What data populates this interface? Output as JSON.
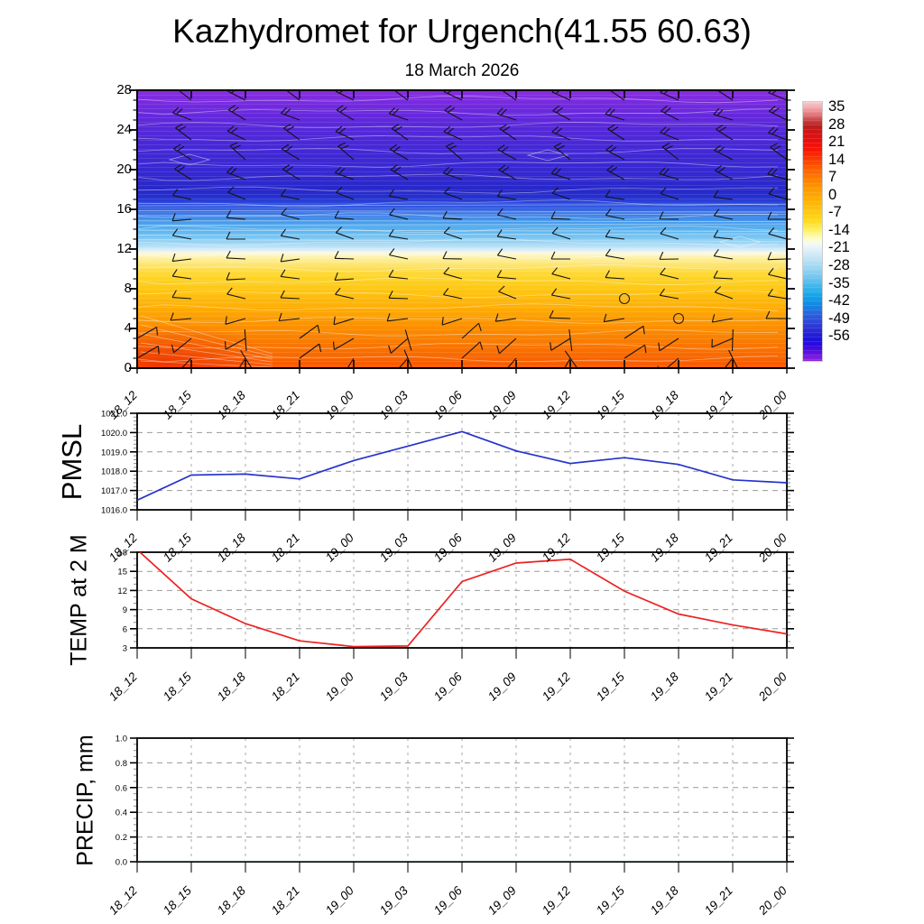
{
  "title": "Kazhydromet for Urgench(41.55 60.63)",
  "subtitle": "18 March 2026",
  "time_labels": [
    "18_12",
    "18_15",
    "18_18",
    "18_21",
    "19_00",
    "19_03",
    "19_06",
    "19_09",
    "19_12",
    "19_15",
    "19_18",
    "19_21",
    "20_00"
  ],
  "colors": {
    "pmsl_line": "#2633cc",
    "temp_line": "#ee2020",
    "precip_line": "#0a6b1e",
    "grid_dash": "#999999",
    "tick_minor": "#8a8a8a",
    "frame": "#000000",
    "barb": "#131313",
    "contour_line": "#ffffff"
  },
  "chart_data": [
    {
      "type": "heatmap",
      "name": "temperature-height-cross-section",
      "x": [
        "18_12",
        "18_15",
        "18_18",
        "18_21",
        "19_00",
        "19_03",
        "19_06",
        "19_09",
        "19_12",
        "19_15",
        "19_18",
        "19_21",
        "20_00"
      ],
      "ylim": [
        0,
        28
      ],
      "yticks": [
        28,
        24,
        20,
        16,
        12,
        8,
        4,
        0
      ],
      "colorbar_labels": [
        "35",
        "28",
        "21",
        "14",
        "7",
        "0",
        "-7",
        "-14",
        "-21",
        "-28",
        "-35",
        "-42",
        "-49",
        "-56"
      ],
      "field_gradient_top_to_bottom": [
        [
          0.0,
          "#8b2ce2"
        ],
        [
          0.06,
          "#7029de"
        ],
        [
          0.12,
          "#5b28da"
        ],
        [
          0.18,
          "#4b28d7"
        ],
        [
          0.24,
          "#3f28d4"
        ],
        [
          0.3,
          "#3528d0"
        ],
        [
          0.34,
          "#2b28cb"
        ],
        [
          0.36,
          "#2627c8"
        ],
        [
          0.385,
          "#2531cf"
        ],
        [
          0.405,
          "#2a46da"
        ],
        [
          0.43,
          "#3766e3"
        ],
        [
          0.46,
          "#3f8ce8"
        ],
        [
          0.49,
          "#51abed"
        ],
        [
          0.515,
          "#66bbf0"
        ],
        [
          0.54,
          "#8ccef3"
        ],
        [
          0.56,
          "#b4dff6"
        ],
        [
          0.575,
          "#dceef7"
        ],
        [
          0.583,
          "#f6f7ea"
        ],
        [
          0.59,
          "#fdf8cd"
        ],
        [
          0.605,
          "#fdf0a2"
        ],
        [
          0.625,
          "#fde674"
        ],
        [
          0.65,
          "#fedb44"
        ],
        [
          0.68,
          "#fed222"
        ],
        [
          0.71,
          "#fec917"
        ],
        [
          0.745,
          "#febc0d"
        ],
        [
          0.78,
          "#feae06"
        ],
        [
          0.81,
          "#fda103"
        ],
        [
          0.84,
          "#fc9401"
        ],
        [
          0.875,
          "#fb8600"
        ],
        [
          0.91,
          "#fa7900"
        ],
        [
          0.945,
          "#f96c00"
        ],
        [
          0.975,
          "#f86000"
        ],
        [
          1.0,
          "#f75800"
        ]
      ],
      "colorbar_gradient_top_to_bottom": [
        [
          0.0,
          "#f9cdd0"
        ],
        [
          0.025,
          "#f0a3a8"
        ],
        [
          0.05,
          "#e07578"
        ],
        [
          0.075,
          "#c43b3c"
        ],
        [
          0.095,
          "#b91f1f"
        ],
        [
          0.12,
          "#d41313"
        ],
        [
          0.15,
          "#ea0e0e"
        ],
        [
          0.185,
          "#fa1505"
        ],
        [
          0.22,
          "#fc3902"
        ],
        [
          0.255,
          "#fd5c01"
        ],
        [
          0.295,
          "#fd7c00"
        ],
        [
          0.335,
          "#fe9a00"
        ],
        [
          0.375,
          "#feae05"
        ],
        [
          0.415,
          "#fec30c"
        ],
        [
          0.455,
          "#fed81c"
        ],
        [
          0.49,
          "#feee52"
        ],
        [
          0.515,
          "#fdf9a6"
        ],
        [
          0.535,
          "#fcfdd9"
        ],
        [
          0.555,
          "#eef7fa"
        ],
        [
          0.58,
          "#d8ecf8"
        ],
        [
          0.61,
          "#bce2f5"
        ],
        [
          0.645,
          "#99d4f1"
        ],
        [
          0.68,
          "#6ec5ee"
        ],
        [
          0.715,
          "#3cb4eb"
        ],
        [
          0.75,
          "#12a4e8"
        ],
        [
          0.78,
          "#0f8ce4"
        ],
        [
          0.815,
          "#2767de"
        ],
        [
          0.85,
          "#2f46d8"
        ],
        [
          0.88,
          "#2c2cd2"
        ],
        [
          0.915,
          "#1d14dc"
        ],
        [
          0.94,
          "#2d08e0"
        ],
        [
          0.965,
          "#5a0fdf"
        ],
        [
          0.985,
          "#7b1cdd"
        ],
        [
          1.0,
          "#8d28dc"
        ]
      ],
      "calm_circles": [
        {
          "time": "19_15",
          "height": 7
        },
        {
          "time": "19_18",
          "height": 5
        }
      ],
      "wind_rows": [
        {
          "h": 27,
          "a": 150,
          "f": 2,
          "len": 22
        },
        {
          "h": 25,
          "a": 157,
          "f": 2,
          "len": 22
        },
        {
          "h": 23,
          "a": 152,
          "f": 2,
          "len": 22
        },
        {
          "h": 21,
          "a": 147,
          "f": 2,
          "len": 23
        },
        {
          "h": 19,
          "a": 158,
          "f": 2,
          "len": 22
        },
        {
          "h": 17,
          "a": 168,
          "f": 1,
          "len": 21
        },
        {
          "h": 15,
          "a": 175,
          "f": 1,
          "len": 21
        },
        {
          "h": 13,
          "a": 170,
          "f": 1,
          "len": 21
        },
        {
          "h": 11,
          "a": 178,
          "f": 1,
          "len": 21
        },
        {
          "h": 9,
          "a": 174,
          "f": 1,
          "len": 21
        },
        {
          "h": 7,
          "a": 168,
          "f": 1,
          "len": 21
        },
        {
          "h": 5,
          "a": 188,
          "f": 1,
          "len": 23
        },
        {
          "h": 3,
          "a": 212,
          "f": 1,
          "len": 25
        },
        {
          "h": 1,
          "a": 230,
          "f": 1,
          "len": 27
        }
      ]
    },
    {
      "type": "line",
      "ylabel": "PMSL",
      "x": [
        "18_12",
        "18_15",
        "18_18",
        "18_21",
        "19_00",
        "19_03",
        "19_06",
        "19_09",
        "19_12",
        "19_15",
        "19_18",
        "19_21",
        "20_00"
      ],
      "values": [
        1016.5,
        1017.8,
        1017.85,
        1017.6,
        1018.55,
        1019.3,
        1020.05,
        1019.05,
        1018.4,
        1018.7,
        1018.35,
        1017.55,
        1017.4
      ],
      "ylim": [
        1016.0,
        1021.0
      ],
      "ytick_labels": [
        "1021.0",
        "1020.0",
        "1019.0",
        "1018.0",
        "1017.0",
        "1016.0"
      ],
      "ytick_values": [
        1021,
        1020,
        1019,
        1018,
        1017,
        1016
      ],
      "minor_step": 0.2
    },
    {
      "type": "line",
      "ylabel": "TEMP at 2 M",
      "x": [
        "18_12",
        "18_15",
        "18_18",
        "18_21",
        "19_00",
        "19_03",
        "19_06",
        "19_09",
        "19_12",
        "19_15",
        "19_18",
        "19_21",
        "20_00"
      ],
      "values": [
        18.4,
        10.7,
        6.8,
        4.1,
        3.2,
        3.3,
        13.4,
        16.3,
        16.9,
        11.9,
        8.3,
        6.6,
        5.2
      ],
      "ylim": [
        3,
        18
      ],
      "ytick_labels": [
        "18",
        "15",
        "12",
        "9",
        "6",
        "3"
      ],
      "ytick_values": [
        18,
        15,
        12,
        9,
        6,
        3
      ],
      "minor_step": 1
    },
    {
      "type": "line",
      "ylabel": "PRECIP, mm",
      "x": [
        "18_12",
        "18_15",
        "18_18",
        "18_21",
        "19_00",
        "19_03",
        "19_06",
        "19_09",
        "19_12",
        "19_15",
        "19_18",
        "19_21",
        "20_00"
      ],
      "values": [
        0.0,
        0.0,
        0.0,
        0.0,
        0.0,
        0.0,
        0.0,
        0.0,
        0.0,
        0.0,
        0.0,
        0.0,
        0.0
      ],
      "ylim": [
        0.0,
        1.0
      ],
      "ytick_labels": [
        "1.0",
        "0.8",
        "0.6",
        "0.4",
        "0.2",
        "0.0"
      ],
      "ytick_values": [
        1.0,
        0.8,
        0.6,
        0.4,
        0.2,
        0.0
      ],
      "minor_step": 0.05
    }
  ]
}
